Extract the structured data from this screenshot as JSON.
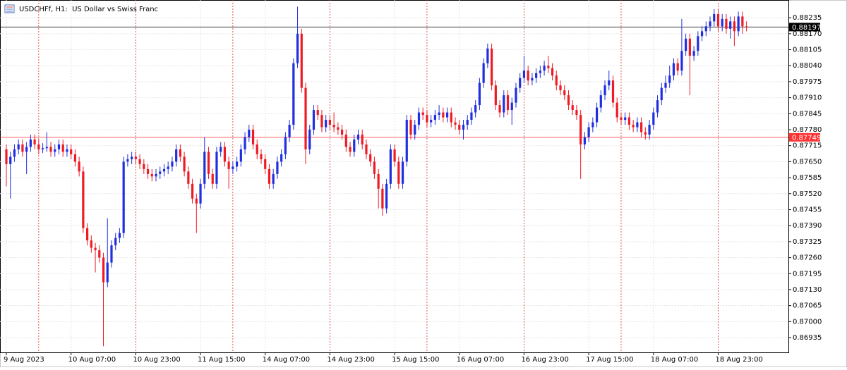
{
  "chart_data": {
    "type": "candlestick",
    "title": "USDCHFf, H1:  US Dollar vs Swiss Franc",
    "up_color": "#1f2fe0",
    "down_color": "#ee1b24",
    "grid": true,
    "ylim": [
      0.86875,
      0.88307
    ],
    "yticks": [
      0.88235,
      {
        "value": 0.8817,
        "label": "0.88170"
      },
      0.88105,
      {
        "value": 0.8804,
        "label": "0.88040"
      },
      0.87975,
      {
        "value": 0.8791,
        "label": "0.87910"
      },
      0.87845,
      {
        "value": 0.8778,
        "label": "0.87780"
      },
      0.87715,
      {
        "value": 0.8765,
        "label": "0.87650"
      },
      0.87585,
      {
        "value": 0.8752,
        "label": "0.87520"
      },
      0.87455,
      {
        "value": 0.8739,
        "label": "0.87390"
      },
      0.87325,
      {
        "value": 0.8726,
        "label": "0.87260"
      },
      0.87195,
      {
        "value": 0.8713,
        "label": "0.87130"
      },
      0.87065,
      {
        "value": 0.87,
        "label": "0.87000"
      },
      0.86935
    ],
    "xticks": [
      {
        "value": 0,
        "label": "9 Aug 2023"
      },
      {
        "value": 16,
        "label": "10 Aug 07:00"
      },
      {
        "value": 32,
        "label": "10 Aug 23:00"
      },
      {
        "value": 48,
        "label": "11 Aug 15:00"
      },
      {
        "value": 64,
        "label": "14 Aug 07:00"
      },
      {
        "value": 80,
        "label": "14 Aug 23:00"
      },
      {
        "value": 96,
        "label": "15 Aug 15:00"
      },
      {
        "value": 112,
        "label": "16 Aug 07:00"
      },
      {
        "value": 128,
        "label": "16 Aug 23:00"
      },
      {
        "value": 144,
        "label": "17 Aug 15:00"
      },
      {
        "value": 160,
        "label": "18 Aug 07:00"
      },
      {
        "value": 176,
        "label": "18 Aug 23:00"
      }
    ],
    "separators": [
      8,
      32,
      56,
      80,
      104,
      128,
      152,
      176
    ],
    "price_lines": [
      {
        "value": 0.88197,
        "color": "#000000"
      },
      {
        "value": 0.87749,
        "color": "#ff3030"
      }
    ],
    "open": [
      0.877,
      0.8764,
      0.8767,
      0.877,
      0.8772,
      0.8769,
      0.8771,
      0.8774,
      0.8772,
      0.877,
      0.87705,
      0.8771,
      0.8769,
      0.877,
      0.8772,
      0.8769,
      0.877,
      0.8768,
      0.8765,
      0.8761,
      0.8738,
      0.8733,
      0.873,
      0.8729,
      0.8726,
      0.8716,
      0.8724,
      0.8731,
      0.8734,
      0.8736,
      0.8765,
      0.8766,
      0.8767,
      0.8766,
      0.8764,
      0.8762,
      0.876,
      0.8759,
      0.876,
      0.8761,
      0.8762,
      0.8763,
      0.8765,
      0.877,
      0.8767,
      0.8761,
      0.8756,
      0.875,
      0.8748,
      0.8756,
      0.8769,
      0.876,
      0.8756,
      0.8769,
      0.8771,
      0.8765,
      0.8762,
      0.8763,
      0.8765,
      0.877,
      0.8775,
      0.8778,
      0.8772,
      0.8768,
      0.8766,
      0.8762,
      0.8756,
      0.876,
      0.8765,
      0.8768,
      0.8775,
      0.878,
      0.8805,
      0.8817,
      0.8795,
      0.877,
      0.8778,
      0.8786,
      0.8784,
      0.8779,
      0.8782,
      0.878,
      0.8779,
      0.8778,
      0.8776,
      0.8771,
      0.8769,
      0.8774,
      0.8776,
      0.8772,
      0.8768,
      0.8765,
      0.876,
      0.8754,
      0.8746,
      0.8756,
      0.877,
      0.8765,
      0.8756,
      0.8765,
      0.8782,
      0.8776,
      0.878,
      0.8785,
      0.8784,
      0.8781,
      0.8782,
      0.8784,
      0.8785,
      0.8783,
      0.8785,
      0.8781,
      0.878,
      0.8778,
      0.878,
      0.8782,
      0.8785,
      0.8788,
      0.8797,
      0.8805,
      0.8811,
      0.8796,
      0.8788,
      0.8785,
      0.8792,
      0.8786,
      0.8789,
      0.8795,
      0.8799,
      0.8802,
      0.8798,
      0.8799,
      0.8801,
      0.8802,
      0.8804,
      0.8803,
      0.88,
      0.8796,
      0.8794,
      0.8792,
      0.8788,
      0.8786,
      0.8784,
      0.8772,
      0.8775,
      0.8779,
      0.8781,
      0.8787,
      0.8792,
      0.8796,
      0.8798,
      0.8789,
      0.8783,
      0.8782,
      0.8783,
      0.878,
      0.8779,
      0.8781,
      0.8777,
      0.8776,
      0.878,
      0.8785,
      0.879,
      0.8795,
      0.8797,
      0.88,
      0.8805,
      0.8802,
      0.881,
      0.8815,
      0.8808,
      0.881,
      0.8816,
      0.8818,
      0.882,
      0.8822,
      0.8825,
      0.882,
      0.8823,
      0.8819,
      0.8822,
      0.8818,
      0.8824,
      0.882
    ],
    "high": [
      0.8772,
      0.8769,
      0.8772,
      0.8774,
      0.8774,
      0.8773,
      0.8776,
      0.8776,
      0.8774,
      0.87725,
      0.8777,
      0.8773,
      0.8772,
      0.8774,
      0.8774,
      0.8772,
      0.8772,
      0.877,
      0.8767,
      0.8763,
      0.874,
      0.8735,
      0.8732,
      0.8731,
      0.8728,
      0.8742,
      0.8733,
      0.8736,
      0.8738,
      0.8767,
      0.8768,
      0.8769,
      0.8769,
      0.8768,
      0.8766,
      0.8764,
      0.8762,
      0.8762,
      0.8763,
      0.8764,
      0.8765,
      0.8767,
      0.8772,
      0.8772,
      0.8769,
      0.8763,
      0.8758,
      0.8752,
      0.8758,
      0.8775,
      0.8771,
      0.8762,
      0.8771,
      0.8773,
      0.8773,
      0.8767,
      0.8765,
      0.8767,
      0.8772,
      0.8777,
      0.878,
      0.878,
      0.8774,
      0.877,
      0.8768,
      0.8764,
      0.8762,
      0.8767,
      0.877,
      0.8777,
      0.8782,
      0.8807,
      0.8828,
      0.8819,
      0.8797,
      0.878,
      0.8788,
      0.8788,
      0.8786,
      0.8784,
      0.8784,
      0.8785,
      0.8781,
      0.878,
      0.8778,
      0.8773,
      0.8776,
      0.8778,
      0.8778,
      0.8774,
      0.877,
      0.8767,
      0.8762,
      0.8756,
      0.8758,
      0.8772,
      0.8772,
      0.8767,
      0.8767,
      0.8784,
      0.8784,
      0.8782,
      0.8787,
      0.8787,
      0.8786,
      0.8784,
      0.8786,
      0.8788,
      0.8787,
      0.8787,
      0.8787,
      0.8783,
      0.8782,
      0.8782,
      0.8784,
      0.8787,
      0.879,
      0.8799,
      0.8807,
      0.8813,
      0.8813,
      0.8798,
      0.879,
      0.8794,
      0.8794,
      0.8791,
      0.8797,
      0.8801,
      0.8808,
      0.8804,
      0.8801,
      0.8803,
      0.8804,
      0.8806,
      0.8808,
      0.8805,
      0.8802,
      0.8798,
      0.8796,
      0.8794,
      0.879,
      0.8788,
      0.8786,
      0.8777,
      0.8781,
      0.8783,
      0.8789,
      0.8794,
      0.8798,
      0.8802,
      0.88,
      0.8791,
      0.8785,
      0.8785,
      0.8785,
      0.8782,
      0.8783,
      0.8783,
      0.8779,
      0.8782,
      0.8787,
      0.8792,
      0.8797,
      0.88,
      0.8804,
      0.8807,
      0.8807,
      0.8823,
      0.8817,
      0.8817,
      0.8812,
      0.8818,
      0.882,
      0.8822,
      0.8824,
      0.8827,
      0.8827,
      0.8825,
      0.8825,
      0.8824,
      0.8824,
      0.8826,
      0.8826,
      0.8822
    ],
    "low": [
      0.8755,
      0.875,
      0.8765,
      0.8768,
      0.8767,
      0.876,
      0.8769,
      0.877,
      0.8768,
      0.87685,
      0.8769,
      0.8767,
      0.8767,
      0.8768,
      0.8767,
      0.8767,
      0.8766,
      0.8763,
      0.8759,
      0.8736,
      0.8731,
      0.8728,
      0.872,
      0.8724,
      0.869,
      0.8714,
      0.8722,
      0.8729,
      0.8732,
      0.8734,
      0.8763,
      0.8764,
      0.8764,
      0.8762,
      0.876,
      0.8758,
      0.8757,
      0.8757,
      0.8758,
      0.8759,
      0.876,
      0.8761,
      0.8763,
      0.8765,
      0.8759,
      0.8754,
      0.8748,
      0.8736,
      0.8746,
      0.8754,
      0.8758,
      0.8754,
      0.8754,
      0.8767,
      0.8763,
      0.8754,
      0.876,
      0.8761,
      0.8763,
      0.8768,
      0.8773,
      0.877,
      0.8766,
      0.8764,
      0.876,
      0.8754,
      0.8754,
      0.8758,
      0.8763,
      0.8766,
      0.8773,
      0.8778,
      0.8803,
      0.8793,
      0.8764,
      0.8768,
      0.8776,
      0.8782,
      0.8777,
      0.8777,
      0.8778,
      0.8777,
      0.8776,
      0.8774,
      0.8769,
      0.8767,
      0.8767,
      0.8772,
      0.877,
      0.8766,
      0.8763,
      0.8758,
      0.8746,
      0.8743,
      0.8744,
      0.8754,
      0.8763,
      0.8754,
      0.8754,
      0.8763,
      0.8774,
      0.8774,
      0.8778,
      0.8782,
      0.8779,
      0.8779,
      0.878,
      0.8782,
      0.8781,
      0.8781,
      0.8779,
      0.8778,
      0.8776,
      0.8774,
      0.8778,
      0.878,
      0.8783,
      0.8786,
      0.8795,
      0.8803,
      0.8794,
      0.8786,
      0.8783,
      0.8783,
      0.8784,
      0.878,
      0.8787,
      0.8793,
      0.8797,
      0.8796,
      0.8796,
      0.8797,
      0.8799,
      0.88,
      0.8801,
      0.8798,
      0.8794,
      0.8792,
      0.879,
      0.8786,
      0.8784,
      0.8782,
      0.8758,
      0.877,
      0.8773,
      0.8777,
      0.8779,
      0.8785,
      0.879,
      0.8794,
      0.8787,
      0.8781,
      0.878,
      0.878,
      0.8778,
      0.8777,
      0.8777,
      0.8775,
      0.8774,
      0.8774,
      0.8778,
      0.8783,
      0.8788,
      0.8793,
      0.8795,
      0.8798,
      0.88,
      0.88,
      0.8808,
      0.8792,
      0.8806,
      0.8808,
      0.8814,
      0.8816,
      0.8818,
      0.882,
      0.8818,
      0.8818,
      0.8817,
      0.8815,
      0.8812,
      0.8816,
      0.8817,
      0.8818
    ],
    "close": [
      0.8764,
      0.8767,
      0.877,
      0.8772,
      0.8769,
      0.8771,
      0.8774,
      0.8772,
      0.877,
      0.87705,
      0.8771,
      0.8769,
      0.877,
      0.8772,
      0.8769,
      0.877,
      0.8768,
      0.8765,
      0.8761,
      0.8738,
      0.8733,
      0.873,
      0.8729,
      0.8726,
      0.8716,
      0.8724,
      0.8731,
      0.8734,
      0.8736,
      0.8765,
      0.8766,
      0.8767,
      0.8766,
      0.8764,
      0.8762,
      0.876,
      0.8759,
      0.876,
      0.8761,
      0.8762,
      0.8763,
      0.8765,
      0.877,
      0.8767,
      0.8761,
      0.8756,
      0.875,
      0.8748,
      0.8756,
      0.8769,
      0.876,
      0.8756,
      0.8769,
      0.8771,
      0.8765,
      0.8762,
      0.8763,
      0.8765,
      0.877,
      0.8775,
      0.8778,
      0.8772,
      0.8768,
      0.8766,
      0.8762,
      0.8756,
      0.876,
      0.8765,
      0.8768,
      0.8775,
      0.878,
      0.8805,
      0.8817,
      0.8795,
      0.877,
      0.8778,
      0.8786,
      0.8784,
      0.8779,
      0.8782,
      0.878,
      0.8779,
      0.8778,
      0.8776,
      0.8771,
      0.8769,
      0.8774,
      0.8776,
      0.8772,
      0.8768,
      0.8765,
      0.876,
      0.8754,
      0.8746,
      0.8756,
      0.877,
      0.8765,
      0.8756,
      0.8765,
      0.8782,
      0.8776,
      0.878,
      0.8785,
      0.8784,
      0.8781,
      0.8782,
      0.8784,
      0.8785,
      0.8783,
      0.8785,
      0.8781,
      0.878,
      0.8778,
      0.878,
      0.8782,
      0.8785,
      0.8788,
      0.8797,
      0.8805,
      0.8811,
      0.8796,
      0.8788,
      0.8785,
      0.8792,
      0.8786,
      0.8789,
      0.8795,
      0.8799,
      0.8802,
      0.8798,
      0.8799,
      0.8801,
      0.8802,
      0.8804,
      0.8803,
      0.88,
      0.8796,
      0.8794,
      0.8792,
      0.8788,
      0.8786,
      0.8784,
      0.8772,
      0.8775,
      0.8779,
      0.8781,
      0.8787,
      0.8792,
      0.8796,
      0.8798,
      0.8789,
      0.8783,
      0.8782,
      0.8783,
      0.878,
      0.8779,
      0.8781,
      0.8777,
      0.8776,
      0.878,
      0.8785,
      0.879,
      0.8795,
      0.8797,
      0.88,
      0.8805,
      0.8802,
      0.881,
      0.8815,
      0.8808,
      0.881,
      0.8816,
      0.8818,
      0.882,
      0.8822,
      0.8825,
      0.882,
      0.8823,
      0.8819,
      0.8822,
      0.8818,
      0.8824,
      0.882,
      0.88197
    ]
  }
}
